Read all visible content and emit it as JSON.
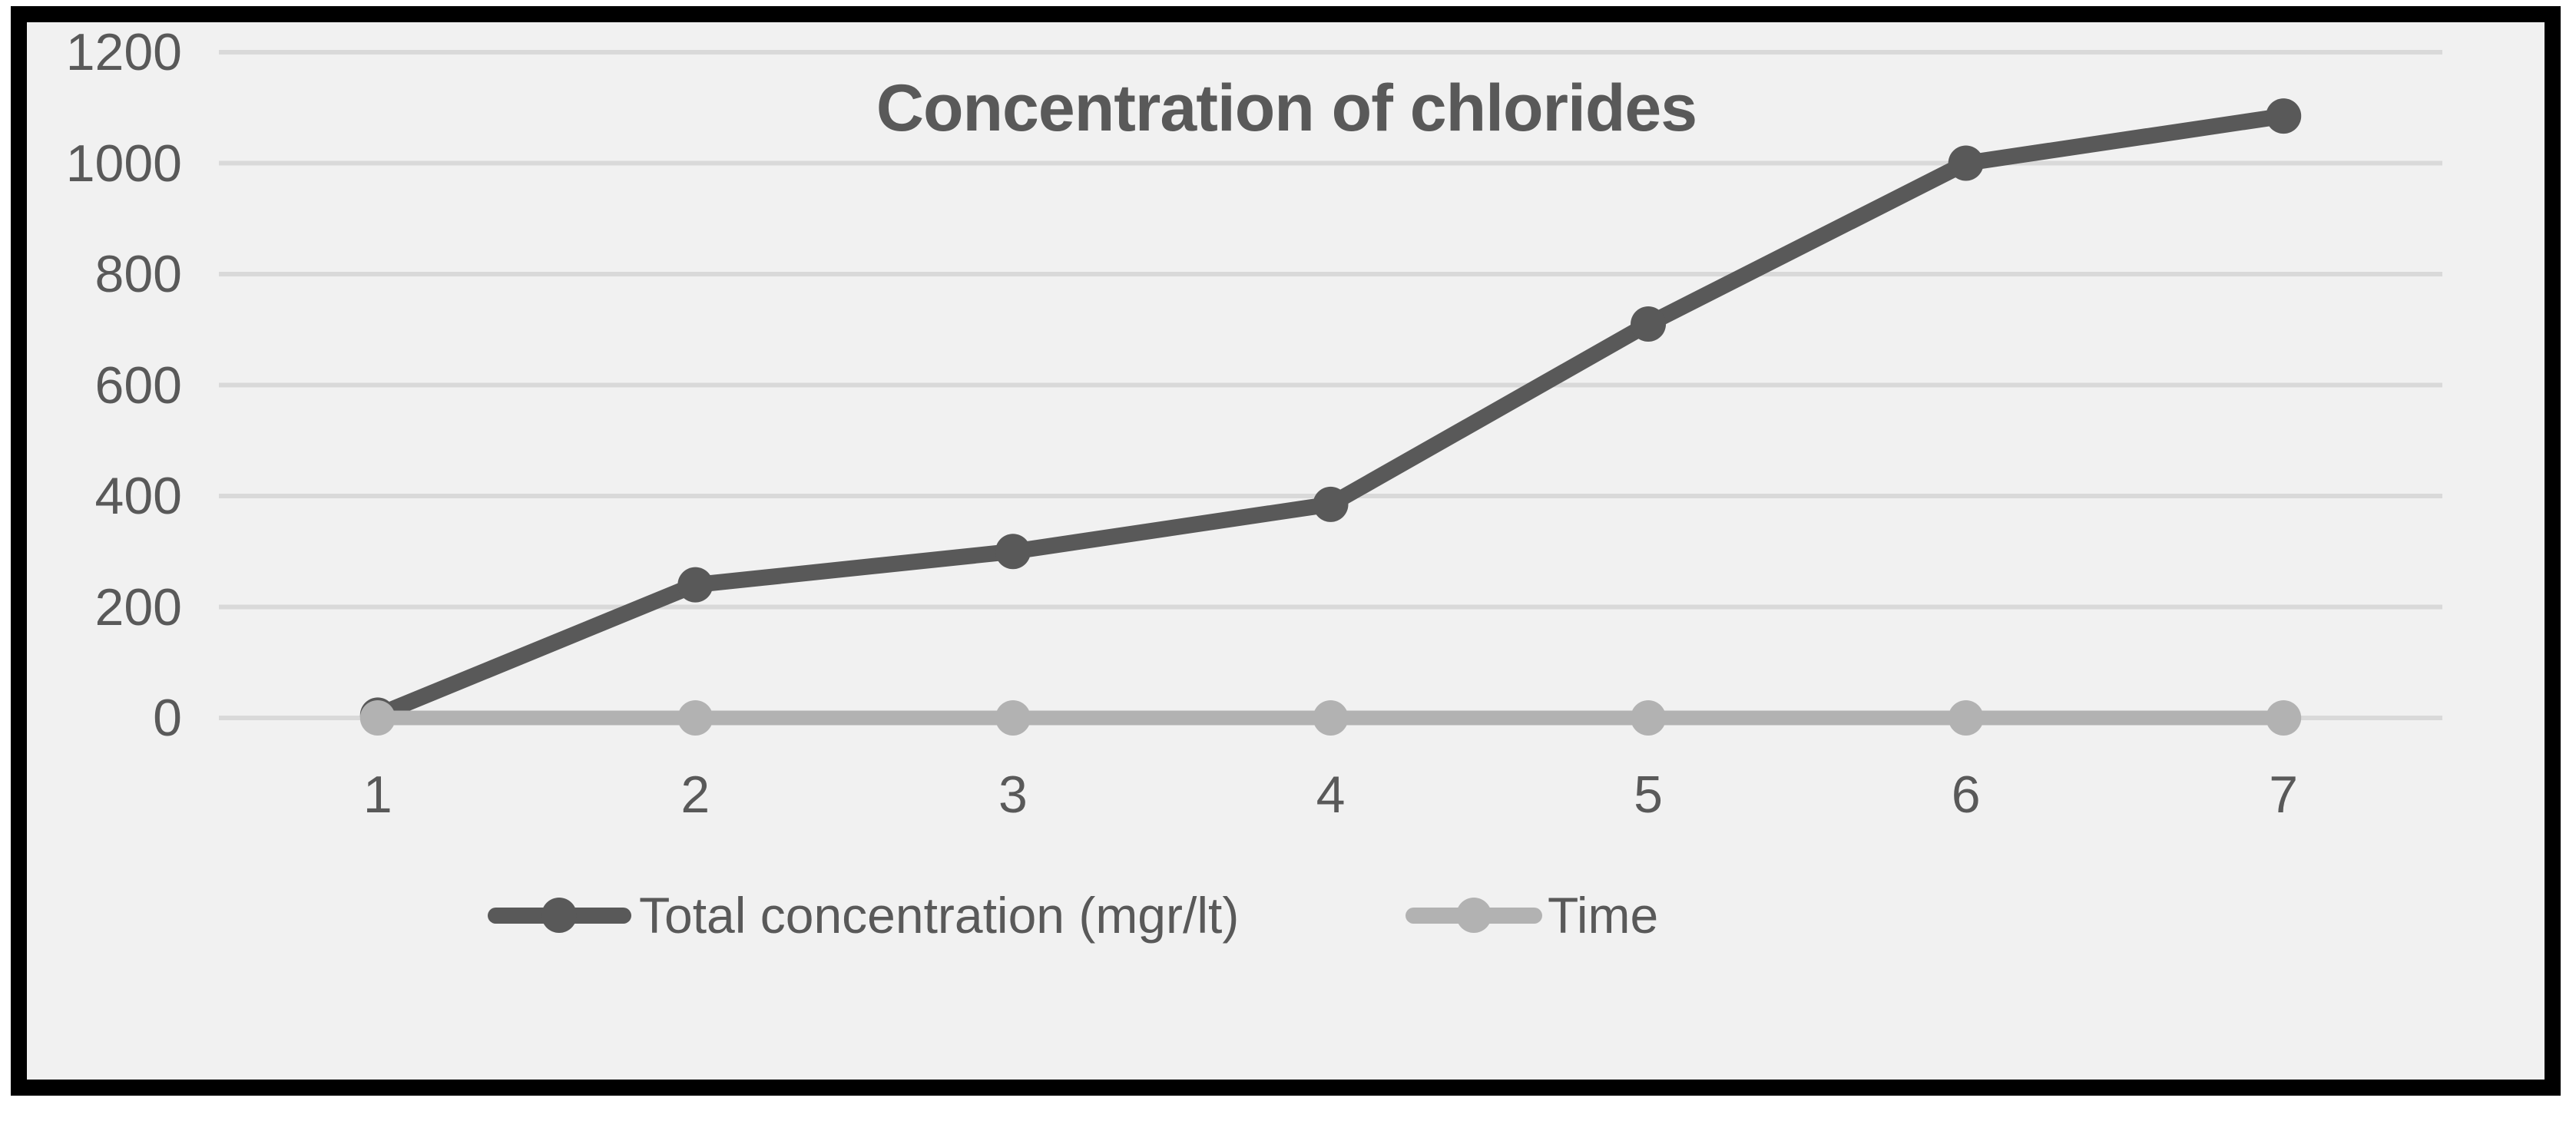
{
  "chart_data": {
    "type": "line",
    "title": "Concentration of chlorides",
    "categories": [
      "1",
      "2",
      "3",
      "4",
      "5",
      "6",
      "7"
    ],
    "series": [
      {
        "name": "Total concentration (mgr/lt)",
        "color": "#595959",
        "values": [
          5,
          240,
          300,
          385,
          710,
          1000,
          1085
        ]
      },
      {
        "name": "Time",
        "color": "#b2b2b2",
        "values": [
          0,
          0,
          0,
          0,
          0,
          0,
          0
        ]
      }
    ],
    "y_axis": {
      "min": 0,
      "max": 1200,
      "step": 200,
      "ticks": [
        "0",
        "200",
        "400",
        "600",
        "800",
        "1000",
        "1200"
      ]
    },
    "x_axis": {
      "label": "",
      "ticks": [
        "1",
        "2",
        "3",
        "4",
        "5",
        "6",
        "7"
      ]
    },
    "grid": "horizontal-on",
    "legend_position": "bottom",
    "colors": {
      "panel_background": "#f1f1f1",
      "outer_background": "#ffffff",
      "frame_border": "#000000",
      "gridline": "#d9d9d9",
      "text": "#595959"
    }
  }
}
